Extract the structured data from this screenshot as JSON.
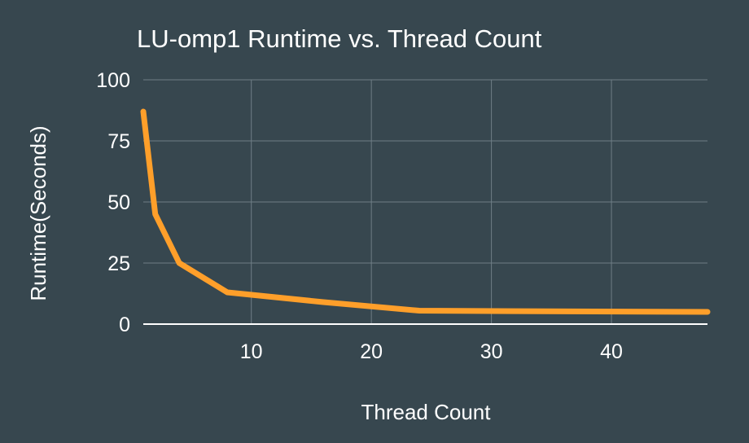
{
  "chart_data": {
    "type": "line",
    "title": "LU-omp1 Runtime vs. Thread Count",
    "xlabel": "Thread Count",
    "ylabel": "Runtime(Seconds)",
    "xlim": [
      1,
      48
    ],
    "ylim": [
      0,
      100
    ],
    "xticks": [
      10,
      20,
      30,
      40
    ],
    "yticks": [
      0,
      25,
      50,
      75,
      100
    ],
    "grid": true,
    "legend": "none",
    "series": [
      {
        "color": "#ff9f2a",
        "x": [
          1,
          2,
          4,
          8,
          16,
          24,
          32,
          48
        ],
        "y": [
          87,
          45,
          25,
          13,
          9,
          5.5,
          5.3,
          5
        ]
      }
    ]
  },
  "colors": {
    "background": "#37474f",
    "grid": "#6f7e86",
    "text": "#ffffff"
  }
}
